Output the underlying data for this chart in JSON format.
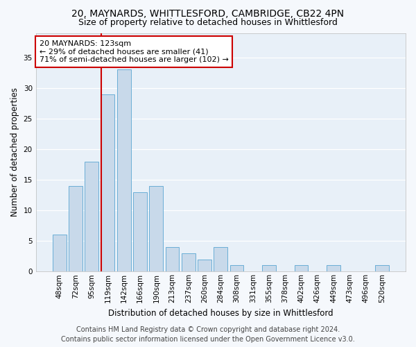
{
  "title": "20, MAYNARDS, WHITTLESFORD, CAMBRIDGE, CB22 4PN",
  "subtitle": "Size of property relative to detached houses in Whittlesford",
  "xlabel": "Distribution of detached houses by size in Whittlesford",
  "ylabel": "Number of detached properties",
  "all_categories": [
    "48sqm",
    "72sqm",
    "95sqm",
    "119sqm",
    "142sqm",
    "166sqm",
    "190sqm",
    "213sqm",
    "237sqm",
    "260sqm",
    "284sqm",
    "308sqm",
    "331sqm",
    "355sqm",
    "378sqm",
    "402sqm",
    "426sqm",
    "449sqm",
    "473sqm",
    "496sqm",
    "520sqm"
  ],
  "all_values": [
    6,
    14,
    18,
    29,
    33,
    13,
    14,
    4,
    3,
    2,
    4,
    1,
    0,
    1,
    0,
    1,
    0,
    1,
    0,
    0,
    1
  ],
  "bar_color": "#c8d9ea",
  "bar_edge_color": "#6aaed6",
  "plot_bg_color": "#e8f0f8",
  "fig_bg_color": "#f5f8fc",
  "grid_color": "#ffffff",
  "vline_color": "#cc0000",
  "vline_x_index": 3,
  "annotation_line1": "20 MAYNARDS: 123sqm",
  "annotation_line2": "← 29% of detached houses are smaller (41)",
  "annotation_line3": "71% of semi-detached houses are larger (102) →",
  "annotation_box_color": "#ffffff",
  "annotation_box_edge": "#cc0000",
  "footer_line1": "Contains HM Land Registry data © Crown copyright and database right 2024.",
  "footer_line2": "Contains public sector information licensed under the Open Government Licence v3.0.",
  "ylim": [
    0,
    39
  ],
  "yticks": [
    0,
    5,
    10,
    15,
    20,
    25,
    30,
    35
  ],
  "title_fontsize": 10,
  "subtitle_fontsize": 9,
  "axis_label_fontsize": 8.5,
  "tick_fontsize": 7.5,
  "annotation_fontsize": 8,
  "footer_fontsize": 7
}
